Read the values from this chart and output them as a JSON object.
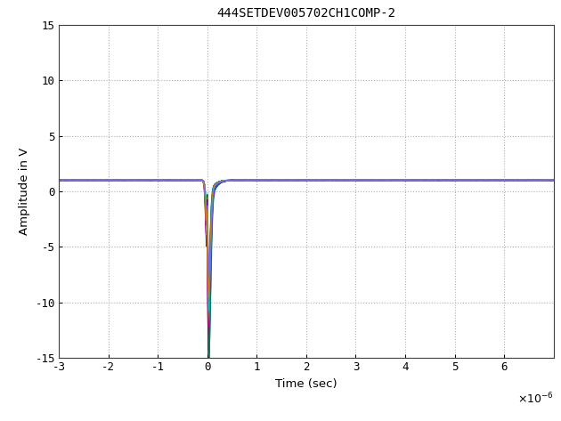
{
  "title": "444SETDEV005702CH1COMP-2",
  "xlabel": "Time (sec)",
  "ylabel": "Amplitude in V",
  "xlim": [
    -3e-06,
    7e-06
  ],
  "ylim": [
    -15,
    15
  ],
  "xticks": [
    -3e-06,
    -2e-06,
    -1e-06,
    0,
    1e-06,
    2e-06,
    3e-06,
    4e-06,
    5e-06,
    6e-06
  ],
  "yticks": [
    -15,
    -10,
    -5,
    0,
    5,
    10,
    15
  ],
  "baseline": 1.0,
  "num_traces": 20,
  "background_color": "#ffffff",
  "grid_color": "#b0b0b0",
  "colors": [
    "#0000cc",
    "#007700",
    "#cc0000",
    "#007777",
    "#880088",
    "#888800",
    "#ff6600",
    "#6600cc",
    "#00cc66",
    "#cc0077",
    "#009900",
    "#009999",
    "#990099",
    "#cc6600",
    "#0077cc",
    "#77cc00",
    "#cc0099",
    "#00cccc",
    "#cc8800",
    "#7766ff"
  ],
  "trace_params": [
    [
      0.0,
      12.0,
      -14.5,
      0.28,
      0.12
    ],
    [
      0.3,
      11.0,
      -13.2,
      0.3,
      0.13
    ],
    [
      -0.2,
      9.5,
      -11.8,
      0.26,
      0.11
    ],
    [
      0.5,
      8.8,
      -12.0,
      0.32,
      0.14
    ],
    [
      -0.4,
      8.0,
      -10.5,
      0.29,
      0.12
    ],
    [
      0.1,
      7.0,
      -9.2,
      0.31,
      0.15
    ],
    [
      -0.1,
      6.5,
      -8.8,
      0.27,
      0.1
    ],
    [
      0.4,
      6.0,
      -8.2,
      0.33,
      0.16
    ],
    [
      -0.3,
      5.5,
      -7.5,
      0.28,
      0.11
    ],
    [
      0.2,
      5.0,
      -7.0,
      0.3,
      0.13
    ],
    [
      -0.2,
      4.5,
      -6.5,
      0.29,
      0.12
    ],
    [
      0.3,
      5.8,
      -8.0,
      0.27,
      0.1
    ],
    [
      -0.1,
      4.8,
      -7.2,
      0.31,
      0.14
    ],
    [
      0.6,
      4.2,
      -6.8,
      0.28,
      0.11
    ],
    [
      -0.5,
      3.8,
      -6.0,
      0.3,
      0.13
    ],
    [
      0.1,
      6.8,
      -9.5,
      0.29,
      0.12
    ],
    [
      -0.3,
      7.2,
      -10.0,
      0.31,
      0.14
    ],
    [
      0.4,
      6.2,
      -8.8,
      0.28,
      0.11
    ],
    [
      -0.4,
      5.2,
      -7.8,
      0.3,
      0.13
    ],
    [
      0.7,
      4.0,
      -6.2,
      0.32,
      0.15
    ]
  ]
}
